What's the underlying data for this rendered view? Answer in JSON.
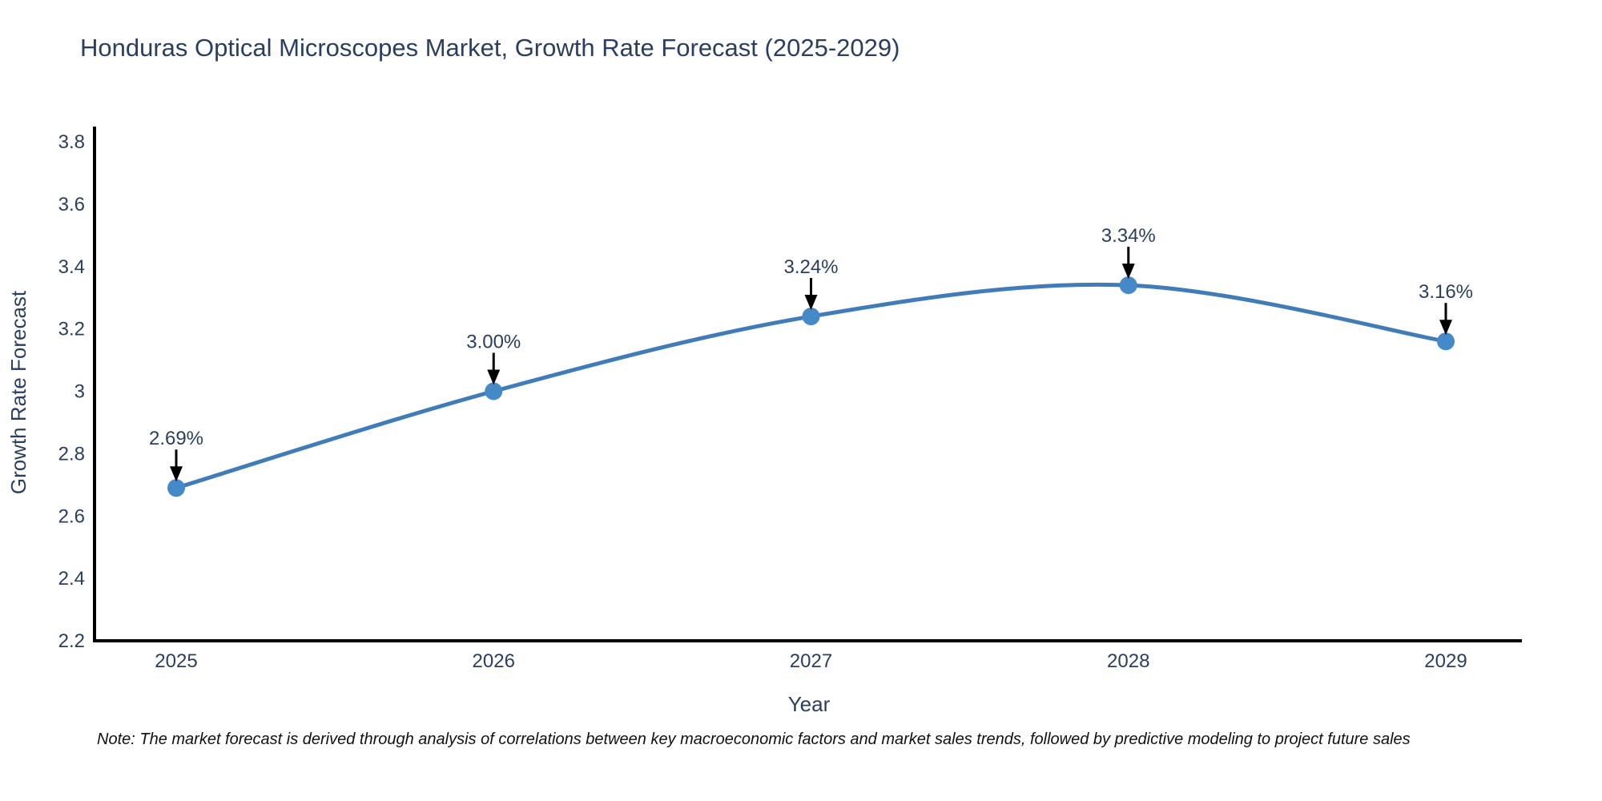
{
  "chart_data": {
    "type": "line",
    "title": "Honduras Optical Microscopes Market, Growth Rate Forecast (2025-2029)",
    "xlabel": "Year",
    "ylabel": "Growth Rate Forecast",
    "categories": [
      "2025",
      "2026",
      "2027",
      "2028",
      "2029"
    ],
    "values": [
      2.69,
      3.0,
      3.24,
      3.34,
      3.16
    ],
    "point_labels": [
      "2.69%",
      "3.00%",
      "3.24%",
      "3.34%",
      "3.16%"
    ],
    "ylim": [
      2.2,
      3.8
    ],
    "ytick_labels": [
      "2.2",
      "2.4",
      "2.6",
      "2.8",
      "3",
      "3.2",
      "3.4",
      "3.6",
      "3.8"
    ],
    "grid": false,
    "legend": "none",
    "line_shape": "spline",
    "colors": {
      "line": "#3f7cb8",
      "marker": "#4589c8",
      "axis": "#000000",
      "annotation_arrow": "#000000",
      "text": "#2a3f5f",
      "note_text": "#111111"
    }
  },
  "note": "Note: The market forecast is derived through analysis of correlations between key macroeconomic factors and market sales trends, followed by predictive modeling to project future sales"
}
